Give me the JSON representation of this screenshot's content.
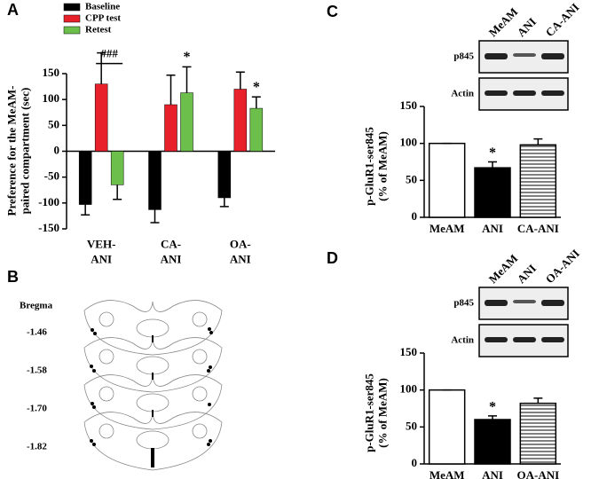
{
  "chart_data": [
    {
      "type": "bar",
      "panel_label": "A",
      "ylabel": "Preference for the MeAM-\npaired compartment (sec)",
      "categories": [
        "VEH-\nANI",
        "CA-\nANI",
        "OA-\nANI"
      ],
      "series": [
        {
          "name": "Baseline",
          "color": "#000000",
          "values": [
            -103,
            -113,
            -90
          ],
          "errors": [
            20,
            25,
            17
          ]
        },
        {
          "name": "CPP test",
          "color": "#e8202a",
          "values": [
            130,
            90,
            120
          ],
          "errors": [
            60,
            57,
            33
          ]
        },
        {
          "name": "Retest",
          "color": "#6cbf4a",
          "values": [
            -65,
            113,
            83
          ],
          "errors": [
            28,
            50,
            22
          ]
        }
      ],
      "ylim": [
        -150,
        150
      ],
      "yticks": [
        -150,
        -100,
        -50,
        0,
        50,
        100,
        150
      ],
      "annotations": [
        "###",
        "*",
        "*"
      ]
    },
    {
      "type": "bar",
      "panel_label": "C",
      "ylabel": "p-GluR1-ser845\n(% of MeAM)",
      "categories": [
        "MeAM",
        "ANI",
        "CA-ANI"
      ],
      "values": [
        100,
        67,
        98
      ],
      "errors": [
        0,
        8,
        8
      ],
      "fills": [
        "#ffffff",
        "#000000",
        "hatch"
      ],
      "ylim": [
        0,
        150
      ],
      "yticks": [
        0,
        50,
        100,
        150
      ],
      "annotations": [
        "*"
      ],
      "blot": {
        "lanes": [
          "MeAM",
          "ANI",
          "CA-ANI"
        ],
        "rows": [
          "p845",
          "Actin"
        ]
      }
    },
    {
      "type": "bar",
      "panel_label": "D",
      "ylabel": "p-GluR1-ser845\n(% of MeAM)",
      "categories": [
        "MeAM",
        "ANI",
        "OA-ANI"
      ],
      "values": [
        100,
        60,
        82
      ],
      "errors": [
        0,
        5,
        7
      ],
      "fills": [
        "#ffffff",
        "#000000",
        "hatch"
      ],
      "ylim": [
        0,
        150
      ],
      "yticks": [
        0,
        50,
        100,
        150
      ],
      "annotations": [
        "*"
      ],
      "blot": {
        "lanes": [
          "MeAM",
          "ANI",
          "OA-ANI"
        ],
        "rows": [
          "p845",
          "Actin"
        ]
      }
    }
  ],
  "panel_b": {
    "panel_label": "B",
    "title": "Bregma",
    "levels": [
      "-1.46",
      "-1.58",
      "-1.70",
      "-1.82"
    ]
  }
}
